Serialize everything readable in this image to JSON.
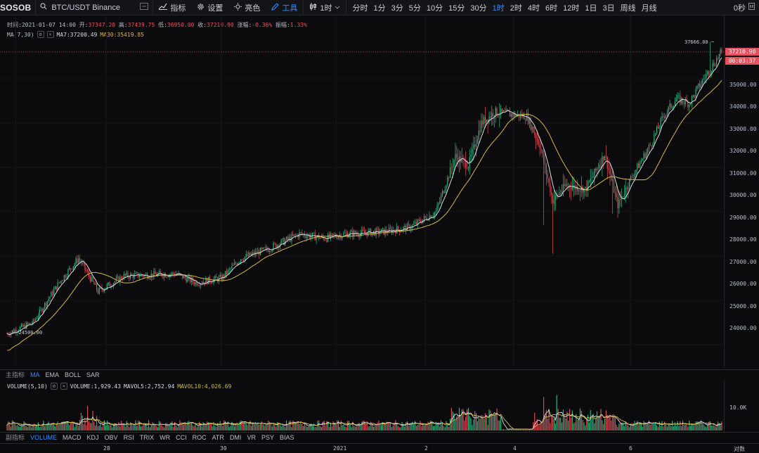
{
  "toolbar": {
    "logo": "SOSOB",
    "symbol": "BTC/USDT  Binance",
    "indicators_label": "指标",
    "settings_label": "设置",
    "theme_label": "亮色",
    "tools_label": "工具",
    "chart_type_label": "1时",
    "intervals": [
      "分时",
      "1分",
      "3分",
      "5分",
      "10分",
      "15分",
      "30分",
      "1时",
      "2时",
      "4时",
      "6时",
      "12时",
      "1日",
      "3日",
      "周线",
      "月线"
    ],
    "active_interval": "1时",
    "right_label": "0秒"
  },
  "info": {
    "time_label": "时间:",
    "time": "2021-01-07 14:00",
    "open_label": "开:",
    "open": "37347.20",
    "high_label": "高:",
    "high": "37439.75",
    "low_label": "低:",
    "low": "36950.00",
    "close_label": "收:",
    "close": "37210.90",
    "change_label": "涨幅:",
    "change": "-0.36%",
    "amplitude_label": "振幅:",
    "amplitude": "1.33%"
  },
  "ma": {
    "title": "MA(7,30)",
    "ma7_label": "MA7:",
    "ma7": "37200.49",
    "ma30_label": "MA30:",
    "ma30": "35419.85"
  },
  "price": {
    "current": "37210.90",
    "countdown": "00:03:37",
    "high_marker": "37666.00",
    "low_marker": "24500.00"
  },
  "y_ticks": [
    "36000.00",
    "35000.00",
    "34000.00",
    "33000.00",
    "32000.00",
    "31000.00",
    "30000.00",
    "29000.00",
    "28000.00",
    "27000.00",
    "26000.00",
    "25000.00",
    "24000.00"
  ],
  "main_indicator_tabs": {
    "title": "主指标",
    "items": [
      "MA",
      "EMA",
      "BOLL",
      "SAR"
    ],
    "active": "MA"
  },
  "volume": {
    "title": "VOLUME(5,10)",
    "volume_label": "VOLUME:",
    "volume": "1,929.43",
    "mavol5_label": "MAVOL5:",
    "mavol5": "2,752.94",
    "mavol10_label": "MAVOL10:",
    "mavol10": "4,026.69",
    "axis_tick": "10.0K"
  },
  "sub_indicator_tabs": {
    "title": "副指标",
    "items": [
      "VOLUME",
      "MACD",
      "KDJ",
      "OBV",
      "RSI",
      "TRIX",
      "WR",
      "CCI",
      "ROC",
      "ATR",
      "DMI",
      "VR",
      "PSY",
      "BIAS"
    ],
    "active": "VOLUME"
  },
  "x_ticks": [
    "28",
    "30",
    "2021",
    "2",
    "4",
    "6"
  ],
  "log_label": "对数",
  "colors": {
    "up": "#2ebd85",
    "down": "#e8505b",
    "ma7": "#d9dbe0",
    "ma30": "#d8b64a",
    "accent": "#2f8cff",
    "background": "#0b0b0d"
  },
  "chart_data": {
    "type": "candlestick",
    "symbol": "BTC/USDT",
    "interval": "1h",
    "price_range": [
      23600,
      37900
    ],
    "anchors": {
      "start_price": 24500,
      "peak_price": 37666,
      "last_close": 37210.9
    },
    "path": [
      [
        0,
        24500
      ],
      [
        20,
        25000
      ],
      [
        40,
        26800
      ],
      [
        55,
        27900
      ],
      [
        70,
        26400
      ],
      [
        90,
        27100
      ],
      [
        130,
        27200
      ],
      [
        145,
        26800
      ],
      [
        165,
        27000
      ],
      [
        180,
        27900
      ],
      [
        200,
        28300
      ],
      [
        225,
        29000
      ],
      [
        245,
        28800
      ],
      [
        260,
        29000
      ],
      [
        290,
        29100
      ],
      [
        310,
        29300
      ],
      [
        330,
        30000
      ],
      [
        345,
        32500
      ],
      [
        355,
        32100
      ],
      [
        365,
        34000
      ],
      [
        375,
        34500
      ],
      [
        400,
        34300
      ],
      [
        410,
        33000
      ],
      [
        420,
        30500
      ],
      [
        430,
        31200
      ],
      [
        445,
        31000
      ],
      [
        460,
        32600
      ],
      [
        470,
        30300
      ],
      [
        480,
        31500
      ],
      [
        495,
        33000
      ],
      [
        505,
        34300
      ],
      [
        515,
        35100
      ],
      [
        525,
        34900
      ],
      [
        535,
        35900
      ],
      [
        545,
        36800
      ],
      [
        550,
        37200
      ]
    ]
  }
}
